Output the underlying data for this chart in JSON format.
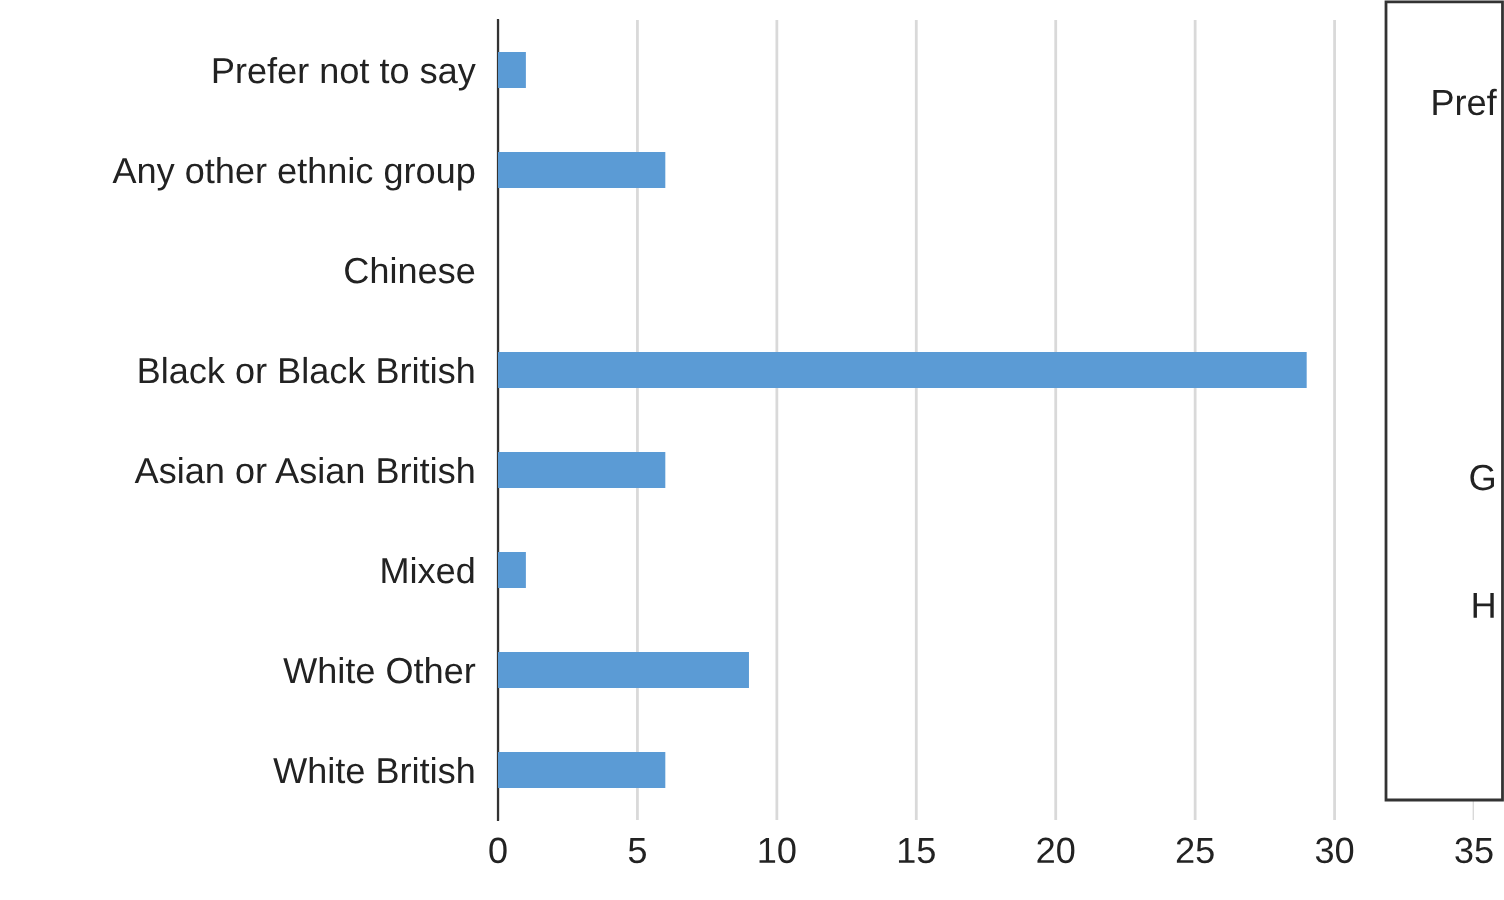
{
  "chart_data": [
    {
      "type": "bar",
      "orientation": "horizontal",
      "categories": [
        "Prefer not to say",
        "Any other ethnic group",
        "Chinese",
        "Black or Black British",
        "Asian or Asian British",
        "Mixed",
        "White Other",
        "White British"
      ],
      "values": [
        1,
        6,
        0,
        29,
        6,
        1,
        9,
        6
      ],
      "color": "#5b9bd5",
      "xlim": [
        0,
        35
      ],
      "xticks": [
        0,
        5,
        10,
        15,
        20,
        25,
        30,
        35
      ],
      "grid": "x"
    },
    {
      "type": "other",
      "annotations": [
        "Pref",
        "G",
        "H"
      ]
    }
  ]
}
